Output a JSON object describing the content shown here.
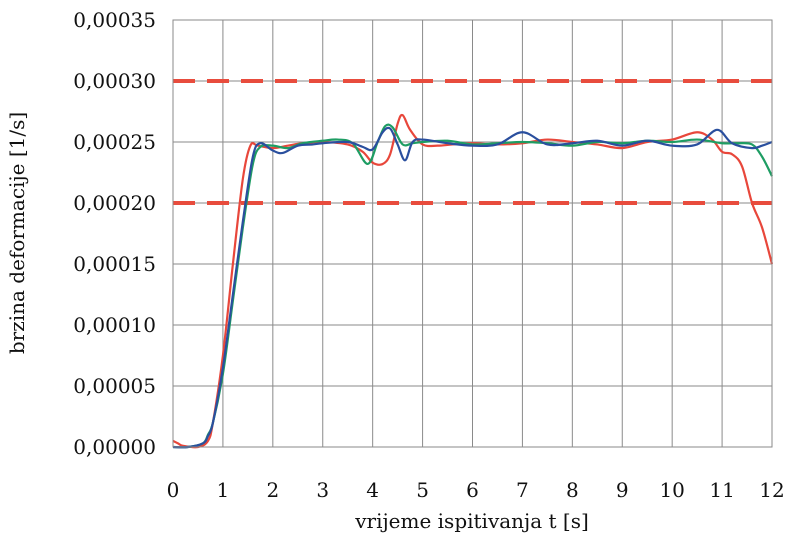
{
  "chart_data": {
    "type": "line",
    "xlabel": "vrijeme ispitivanja t [s]",
    "ylabel": "brzina deformacije [1/s]",
    "xlim": [
      0,
      12
    ],
    "ylim": [
      0,
      0.00035
    ],
    "x_ticks": [
      "0",
      "1",
      "2",
      "3",
      "4",
      "5",
      "6",
      "7",
      "8",
      "9",
      "10",
      "11",
      "12"
    ],
    "y_ticks": [
      "0,00000",
      "0,00005",
      "0,00010",
      "0,00015",
      "0,00020",
      "0,00025",
      "0,00030",
      "0,00035"
    ],
    "grid": true,
    "reference_lines": [
      {
        "y": 0.0003,
        "color": "#e84c3d",
        "style": "dashed"
      },
      {
        "y": 0.0002,
        "color": "#e84c3d",
        "style": "dashed"
      }
    ],
    "series": [
      {
        "color": "#e8473b",
        "x": [
          0,
          0.1,
          0.2,
          0.5,
          0.7,
          0.8,
          1.0,
          1.2,
          1.4,
          1.55,
          1.7,
          2.0,
          2.3,
          2.6,
          3.0,
          3.5,
          3.8,
          4.0,
          4.2,
          4.35,
          4.5,
          4.6,
          4.75,
          5.0,
          5.3,
          5.6,
          6.0,
          6.5,
          7.0,
          7.5,
          8.0,
          8.5,
          9.0,
          9.5,
          10.0,
          10.5,
          10.8,
          11.0,
          11.2,
          11.4,
          11.6,
          11.8,
          12.0
        ],
        "y": [
          5e-06,
          3e-06,
          1e-06,
          0.0,
          5e-06,
          2e-05,
          7.5e-05,
          0.00015,
          0.00022,
          0.000247,
          0.000247,
          0.000245,
          0.000247,
          0.000249,
          0.00025,
          0.000248,
          0.000242,
          0.000233,
          0.000232,
          0.00024,
          0.000265,
          0.000272,
          0.00026,
          0.000248,
          0.000247,
          0.000248,
          0.000249,
          0.000248,
          0.000249,
          0.000252,
          0.00025,
          0.000248,
          0.000245,
          0.00025,
          0.000252,
          0.000258,
          0.000252,
          0.000242,
          0.00024,
          0.00023,
          0.0002,
          0.00018,
          0.00015
        ]
      },
      {
        "color": "#1e9d63",
        "x": [
          0,
          0.3,
          0.6,
          0.7,
          0.8,
          1.0,
          1.2,
          1.4,
          1.6,
          1.75,
          2.0,
          2.3,
          2.6,
          3.0,
          3.3,
          3.6,
          3.9,
          4.1,
          4.25,
          4.4,
          4.6,
          4.8,
          5.0,
          5.5,
          6.0,
          6.5,
          7.0,
          7.5,
          8.0,
          8.5,
          9.0,
          9.5,
          10.0,
          10.5,
          11.0,
          11.3,
          11.6,
          11.8,
          12.0
        ],
        "y": [
          0.0,
          0.0,
          3e-06,
          1e-05,
          2e-05,
          6e-05,
          0.00012,
          0.00018,
          0.000232,
          0.000246,
          0.000247,
          0.000245,
          0.000249,
          0.000251,
          0.000252,
          0.000249,
          0.000232,
          0.00025,
          0.000263,
          0.000262,
          0.000248,
          0.000249,
          0.00025,
          0.000251,
          0.000248,
          0.000249,
          0.00025,
          0.000249,
          0.000247,
          0.00025,
          0.000249,
          0.000251,
          0.00025,
          0.000252,
          0.000249,
          0.000249,
          0.000248,
          0.000238,
          0.000222
        ]
      },
      {
        "color": "#2a4f9e",
        "x": [
          0,
          0.3,
          0.6,
          0.7,
          0.8,
          1.0,
          1.2,
          1.4,
          1.6,
          1.75,
          2.0,
          2.2,
          2.5,
          2.8,
          3.0,
          3.5,
          3.8,
          4.0,
          4.2,
          4.35,
          4.5,
          4.65,
          4.8,
          5.0,
          5.5,
          6.0,
          6.5,
          7.0,
          7.5,
          8.0,
          8.5,
          9.0,
          9.5,
          10.0,
          10.5,
          10.9,
          11.2,
          11.6,
          11.8,
          12.0
        ],
        "y": [
          0.0,
          0.0,
          3e-06,
          9e-06,
          2e-05,
          6.5e-05,
          0.000125,
          0.000185,
          0.000238,
          0.000249,
          0.000243,
          0.000241,
          0.000247,
          0.000248,
          0.000249,
          0.00025,
          0.000246,
          0.000244,
          0.000258,
          0.000261,
          0.000248,
          0.000235,
          0.00025,
          0.000252,
          0.000249,
          0.000247,
          0.000248,
          0.000258,
          0.000248,
          0.000249,
          0.000251,
          0.000247,
          0.000251,
          0.000247,
          0.000248,
          0.00026,
          0.000249,
          0.000245,
          0.000247,
          0.00025
        ]
      }
    ]
  }
}
